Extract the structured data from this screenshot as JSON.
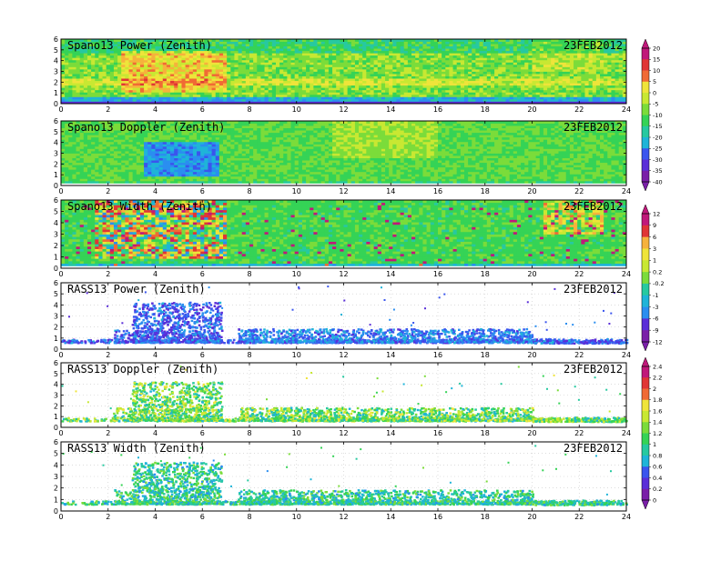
{
  "chart_data": [
    {
      "type": "heatmap",
      "title": "Spano13 Power (Zenith)",
      "date": "23FEB2012",
      "x_ticks": [
        "0",
        "2",
        "4",
        "6",
        "8",
        "10",
        "12",
        "14",
        "16",
        "18",
        "20",
        "22",
        "24"
      ],
      "y_ticks": [
        "0",
        "1",
        "2",
        "3",
        "4",
        "5",
        "6"
      ],
      "xlim": [
        0,
        24
      ],
      "ylim": [
        0,
        6
      ],
      "colorbar_group": 0,
      "fill": "full",
      "grid": false
    },
    {
      "type": "heatmap",
      "title": "Spano13 Doppler (Zenith)",
      "date": "23FEB2012",
      "x_ticks": [
        "0",
        "2",
        "4",
        "6",
        "8",
        "10",
        "12",
        "14",
        "16",
        "18",
        "20",
        "22",
        "24"
      ],
      "y_ticks": [
        "0",
        "1",
        "2",
        "3",
        "4",
        "5",
        "6"
      ],
      "xlim": [
        0,
        24
      ],
      "ylim": [
        0,
        6
      ],
      "colorbar_group": 0,
      "fill": "full",
      "grid": false
    },
    {
      "type": "heatmap",
      "title": "Spano13 Width (Zenith)",
      "date": "23FEB2012",
      "x_ticks": [
        "0",
        "2",
        "4",
        "6",
        "8",
        "10",
        "12",
        "14",
        "16",
        "18",
        "20",
        "22",
        "24"
      ],
      "y_ticks": [
        "0",
        "1",
        "2",
        "3",
        "4",
        "5",
        "6"
      ],
      "xlim": [
        0,
        24
      ],
      "ylim": [
        0,
        6
      ],
      "colorbar_group": 1,
      "fill": "full",
      "grid": false
    },
    {
      "type": "scatter",
      "title": "RASS13 Power (Zenith)",
      "date": "23FEB2012",
      "x_ticks": [
        "0",
        "2",
        "4",
        "6",
        "8",
        "10",
        "12",
        "14",
        "16",
        "18",
        "20",
        "22",
        "24"
      ],
      "y_ticks": [
        "0",
        "1",
        "2",
        "3",
        "4",
        "5",
        "6"
      ],
      "xlim": [
        0,
        24
      ],
      "ylim": [
        0,
        6
      ],
      "colorbar_group": 1,
      "fill": "sparse",
      "grid": true
    },
    {
      "type": "scatter",
      "title": "RASS13 Doppler (Zenith)",
      "date": "23FEB2012",
      "x_ticks": [
        "0",
        "2",
        "4",
        "6",
        "8",
        "10",
        "12",
        "14",
        "16",
        "18",
        "20",
        "22",
        "24"
      ],
      "y_ticks": [
        "0",
        "1",
        "2",
        "3",
        "4",
        "5",
        "6"
      ],
      "xlim": [
        0,
        24
      ],
      "ylim": [
        0,
        6
      ],
      "colorbar_group": 2,
      "fill": "sparse",
      "grid": true
    },
    {
      "type": "scatter",
      "title": "RASS13 Width (Zenith)",
      "date": "23FEB2012",
      "x_ticks": [
        "0",
        "2",
        "4",
        "6",
        "8",
        "10",
        "12",
        "14",
        "16",
        "18",
        "20",
        "22",
        "24"
      ],
      "y_ticks": [
        "0",
        "1",
        "2",
        "3",
        "4",
        "5",
        "6"
      ],
      "xlim": [
        0,
        24
      ],
      "ylim": [
        0,
        6
      ],
      "colorbar_group": 2,
      "fill": "sparse",
      "grid": true
    }
  ],
  "colorbars": [
    {
      "labels": [
        "20",
        "15",
        "10",
        "5",
        "0",
        "-5",
        "-10",
        "-15",
        "-20",
        "-25",
        "-30",
        "-35",
        "-40"
      ]
    },
    {
      "labels": [
        "12",
        "9",
        "6",
        "3",
        "1",
        "0.2",
        "-0.2",
        "-1",
        "-3",
        "-6",
        "-9",
        "-12"
      ]
    },
    {
      "labels": [
        "2.4",
        "2.2",
        "2",
        "1.8",
        "1.6",
        "1.4",
        "1.2",
        "1",
        "0.8",
        "0.6",
        "0.4",
        "0.2",
        "0"
      ]
    }
  ],
  "colors": {
    "palette": [
      "#7a1fa8",
      "#5a2ed8",
      "#3a55ee",
      "#2a8ef0",
      "#1fb4d8",
      "#27c9a0",
      "#35d356",
      "#7bdc3a",
      "#c8e832",
      "#efe43a",
      "#f6b23c",
      "#f06a35",
      "#e03535",
      "#c0187a"
    ],
    "axis": "#000000",
    "grid": "#c8c8c8"
  }
}
